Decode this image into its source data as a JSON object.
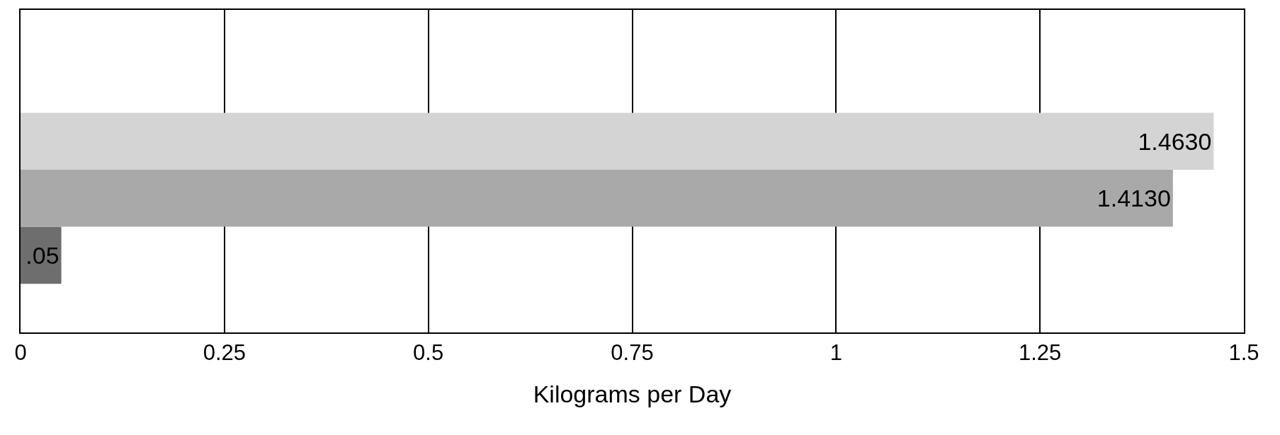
{
  "chart_data": {
    "type": "bar",
    "orientation": "horizontal",
    "xlabel": "Kilograms per Day",
    "categories": [
      null
    ],
    "series": [
      {
        "color": "#d4d4d4",
        "values": [
          1.463
        ],
        "value_labels": [
          "1.4630"
        ]
      },
      {
        "color": "#a9a9a9",
        "values": [
          1.413
        ],
        "value_labels": [
          "1.4130"
        ]
      },
      {
        "color": "#6e6e6e",
        "values": [
          0.05
        ],
        "value_labels": [
          ".05"
        ]
      }
    ],
    "xlim": [
      0,
      1.5
    ],
    "xticks": [
      0,
      0.25,
      0.5,
      0.75,
      1,
      1.25,
      1.5
    ],
    "grid": "x",
    "legend": false
  }
}
